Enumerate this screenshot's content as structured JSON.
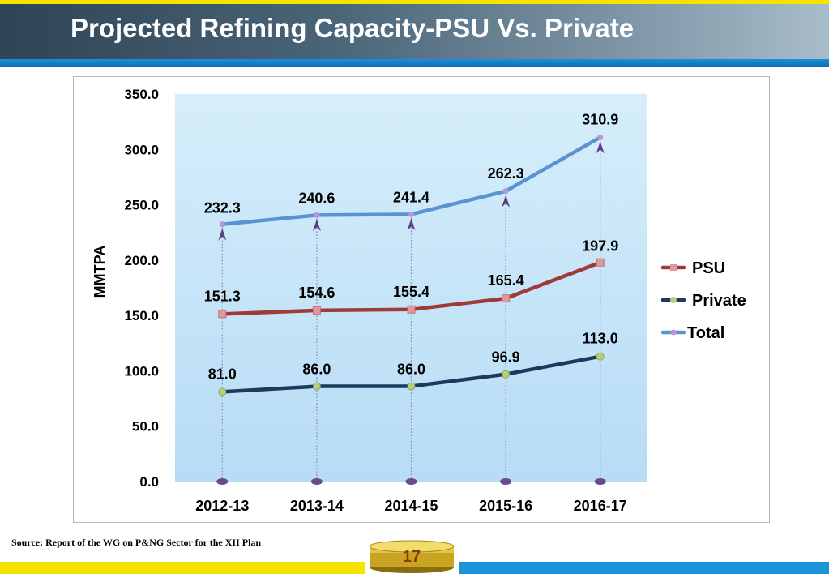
{
  "title": "Projected Refining Capacity-PSU Vs. Private",
  "source": "Source: Report of the WG on P&NG Sector for the XII Plan",
  "page_number": "17",
  "colors": {
    "psu": "#9e3a38",
    "private": "#1c3a5e",
    "total": "#5b93d2",
    "plot_bg_top": "#d6eefb",
    "plot_bg_bottom": "#b7dcf5"
  },
  "chart_data": {
    "type": "line",
    "categories": [
      "2012-13",
      "2013-14",
      "2014-15",
      "2015-16",
      "2016-17"
    ],
    "series": [
      {
        "name": "PSU",
        "values": [
          151.3,
          154.6,
          155.4,
          165.4,
          197.9
        ],
        "labels": [
          "151.3",
          "154.6",
          "155.4",
          "165.4",
          "197.9"
        ]
      },
      {
        "name": "Private",
        "values": [
          81.0,
          86.0,
          86.0,
          96.9,
          113.0
        ],
        "labels": [
          "81.0",
          "86.0",
          "86.0",
          "96.9",
          "113.0"
        ]
      },
      {
        "name": "Total",
        "values": [
          232.3,
          240.6,
          241.4,
          262.3,
          310.9
        ],
        "labels": [
          "232.3",
          "240.6",
          "241.4",
          "262.3",
          "310.9"
        ]
      }
    ],
    "title": "",
    "xlabel": "",
    "ylabel": "MMTPA",
    "ylim": [
      0,
      350
    ],
    "yticks": [
      "0.0",
      "50.0",
      "100.0",
      "150.0",
      "200.0",
      "250.0",
      "300.0",
      "350.0"
    ],
    "grid": false,
    "legend": "right"
  }
}
